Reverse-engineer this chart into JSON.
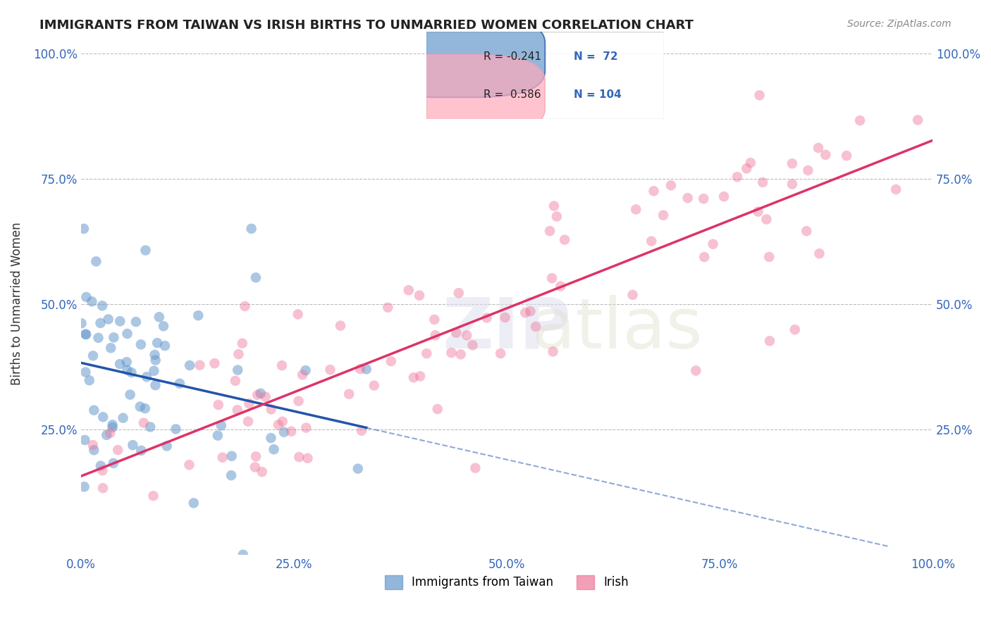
{
  "title": "IMMIGRANTS FROM TAIWAN VS IRISH BIRTHS TO UNMARRIED WOMEN CORRELATION CHART",
  "source": "Source: ZipAtlas.com",
  "xlabel": "",
  "ylabel": "Births to Unmarried Women",
  "legend_labels": [
    "Immigrants from Taiwan",
    "Irish"
  ],
  "blue_R": -0.241,
  "blue_N": 72,
  "pink_R": 0.586,
  "pink_N": 104,
  "blue_color": "#6699cc",
  "pink_color": "#ee7799",
  "blue_line_color": "#2255aa",
  "pink_line_color": "#dd3366",
  "background_color": "#ffffff",
  "grid_color": "#bbbbbb",
  "xlim": [
    0,
    1
  ],
  "ylim": [
    0,
    1
  ],
  "xticks": [
    0,
    0.25,
    0.5,
    0.75,
    1.0
  ],
  "yticks": [
    0,
    0.25,
    0.5,
    0.75,
    1.0
  ],
  "xticklabels": [
    "0.0%",
    "25.0%",
    "50.0%",
    "75.0%",
    "100.0%"
  ],
  "yticklabels": [
    "",
    "25.0%",
    "50.0%",
    "75.0%",
    "100.0%"
  ],
  "blue_seed": 42,
  "pink_seed": 7,
  "watermark": "ZIPatlas",
  "figsize": [
    14.06,
    8.92
  ],
  "dpi": 100
}
